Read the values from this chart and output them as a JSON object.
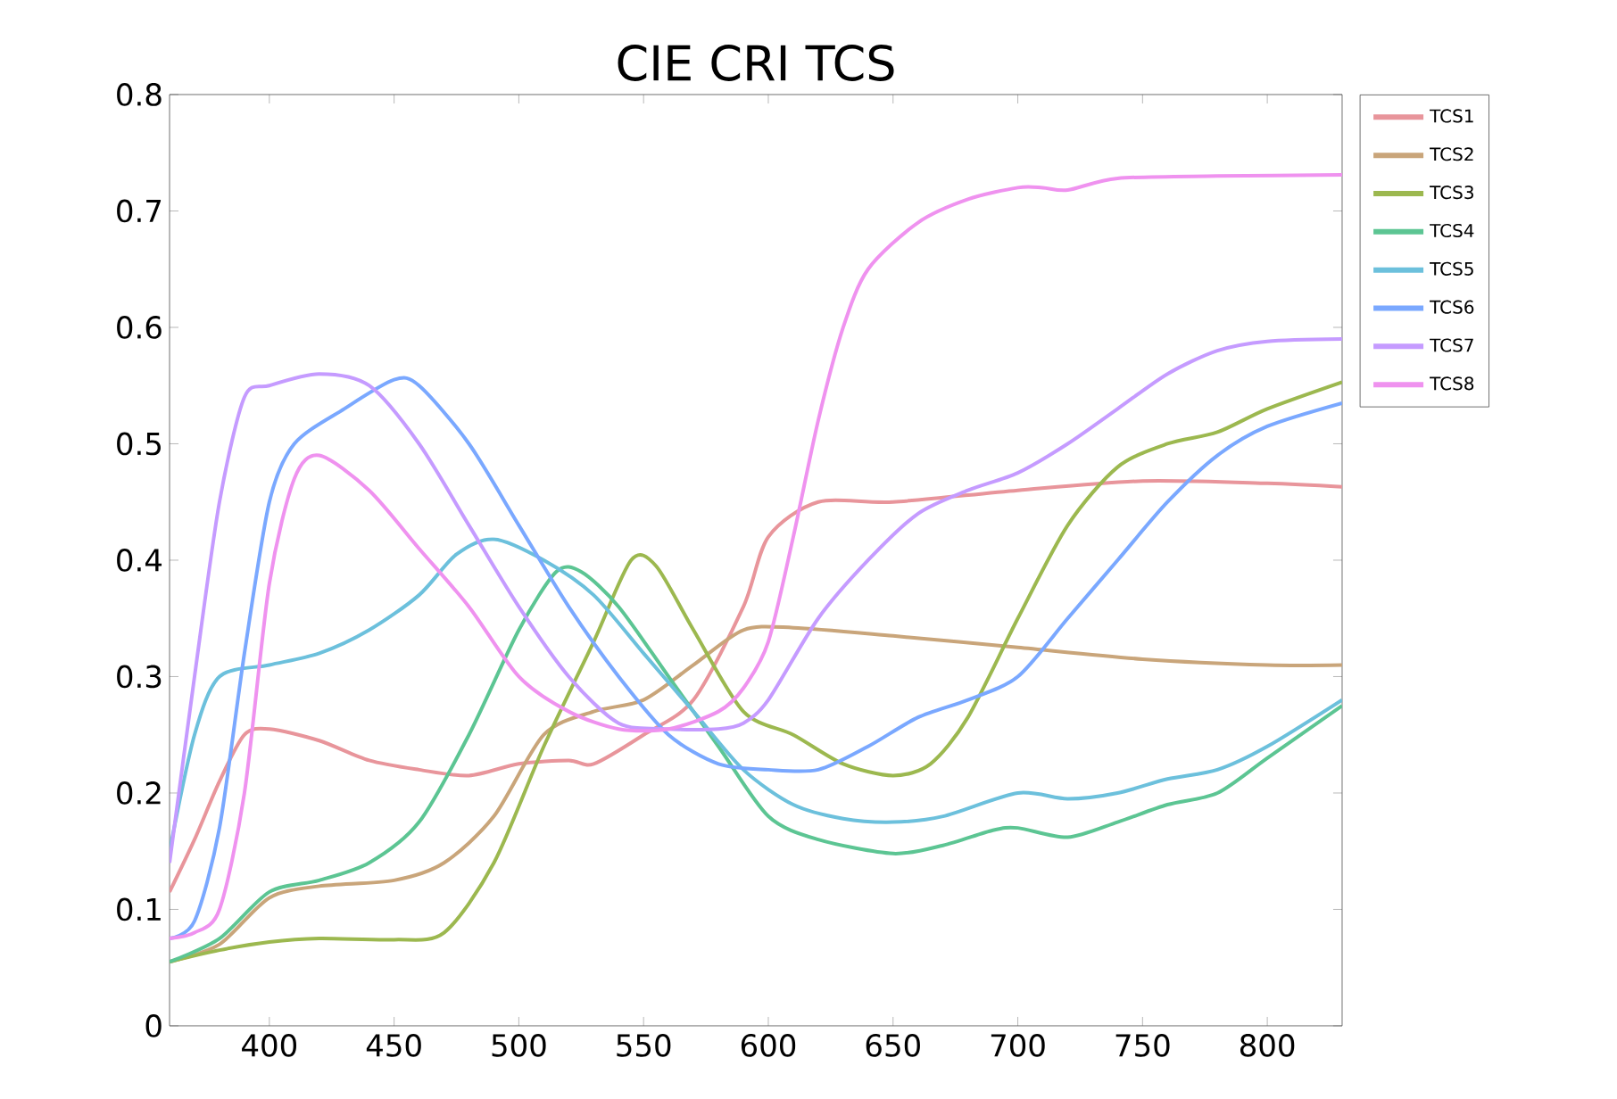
{
  "chart_data": {
    "type": "line",
    "title": "CIE CRI TCS",
    "xlim": [
      360,
      830
    ],
    "ylim": [
      0,
      0.8
    ],
    "xticks": [
      400,
      450,
      500,
      550,
      600,
      650,
      700,
      750,
      800
    ],
    "yticks": [
      0,
      0.1,
      0.2,
      0.3,
      0.4,
      0.5,
      0.6,
      0.7,
      0.8
    ],
    "legend": "top right",
    "grid": false,
    "series": [
      {
        "name": "TCS1",
        "color": "#e8959b",
        "x": [
          360,
          370,
          380,
          390,
          400,
          420,
          440,
          460,
          480,
          500,
          520,
          530,
          550,
          570,
          590,
          600,
          620,
          650,
          700,
          750,
          800,
          830
        ],
        "values": [
          0.115,
          0.16,
          0.21,
          0.25,
          0.255,
          0.245,
          0.228,
          0.22,
          0.215,
          0.225,
          0.228,
          0.225,
          0.25,
          0.28,
          0.36,
          0.42,
          0.45,
          0.45,
          0.46,
          0.468,
          0.466,
          0.463
        ]
      },
      {
        "name": "TCS2",
        "color": "#c9a57a",
        "x": [
          360,
          380,
          400,
          420,
          450,
          470,
          490,
          510,
          530,
          550,
          570,
          590,
          610,
          650,
          700,
          750,
          800,
          830
        ],
        "values": [
          0.055,
          0.07,
          0.11,
          0.12,
          0.125,
          0.14,
          0.18,
          0.25,
          0.27,
          0.28,
          0.31,
          0.34,
          0.342,
          0.335,
          0.325,
          0.315,
          0.31,
          0.31
        ]
      },
      {
        "name": "TCS3",
        "color": "#9cb84f",
        "x": [
          360,
          380,
          400,
          420,
          450,
          470,
          490,
          510,
          530,
          545,
          555,
          570,
          590,
          610,
          630,
          650,
          665,
          680,
          700,
          720,
          740,
          760,
          780,
          800,
          830
        ],
        "values": [
          0.055,
          0.065,
          0.072,
          0.075,
          0.074,
          0.08,
          0.14,
          0.24,
          0.33,
          0.4,
          0.395,
          0.34,
          0.27,
          0.25,
          0.225,
          0.215,
          0.225,
          0.265,
          0.35,
          0.43,
          0.48,
          0.5,
          0.51,
          0.53,
          0.553
        ]
      },
      {
        "name": "TCS4",
        "color": "#5cc593",
        "x": [
          360,
          380,
          400,
          420,
          440,
          460,
          480,
          500,
          515,
          525,
          540,
          560,
          580,
          600,
          620,
          650,
          670,
          690,
          700,
          720,
          740,
          760,
          780,
          800,
          830
        ],
        "values": [
          0.055,
          0.075,
          0.115,
          0.125,
          0.14,
          0.175,
          0.25,
          0.34,
          0.39,
          0.39,
          0.36,
          0.3,
          0.24,
          0.18,
          0.16,
          0.148,
          0.155,
          0.168,
          0.17,
          0.162,
          0.175,
          0.19,
          0.2,
          0.23,
          0.275
        ]
      },
      {
        "name": "TCS5",
        "color": "#6cc0dc",
        "x": [
          360,
          370,
          380,
          400,
          420,
          440,
          460,
          475,
          490,
          510,
          530,
          550,
          570,
          590,
          610,
          630,
          650,
          670,
          700,
          720,
          740,
          760,
          780,
          800,
          830
        ],
        "values": [
          0.15,
          0.25,
          0.3,
          0.31,
          0.32,
          0.34,
          0.37,
          0.405,
          0.418,
          0.4,
          0.37,
          0.32,
          0.27,
          0.22,
          0.19,
          0.178,
          0.175,
          0.18,
          0.2,
          0.195,
          0.2,
          0.212,
          0.22,
          0.24,
          0.28
        ]
      },
      {
        "name": "TCS6",
        "color": "#7aa8ff",
        "x": [
          360,
          370,
          380,
          390,
          400,
          410,
          430,
          450,
          460,
          480,
          500,
          520,
          540,
          560,
          580,
          600,
          620,
          640,
          660,
          680,
          700,
          720,
          740,
          760,
          780,
          800,
          830
        ],
        "values": [
          0.075,
          0.09,
          0.17,
          0.32,
          0.45,
          0.5,
          0.53,
          0.555,
          0.55,
          0.5,
          0.43,
          0.36,
          0.3,
          0.25,
          0.225,
          0.22,
          0.22,
          0.24,
          0.265,
          0.28,
          0.3,
          0.35,
          0.4,
          0.45,
          0.49,
          0.515,
          0.535
        ]
      },
      {
        "name": "TCS7",
        "color": "#c59bff",
        "x": [
          360,
          370,
          380,
          390,
          400,
          420,
          440,
          460,
          480,
          500,
          520,
          540,
          560,
          580,
          590,
          600,
          620,
          640,
          660,
          680,
          700,
          720,
          740,
          760,
          780,
          800,
          830
        ],
        "values": [
          0.14,
          0.3,
          0.45,
          0.54,
          0.55,
          0.56,
          0.55,
          0.5,
          0.43,
          0.36,
          0.3,
          0.26,
          0.255,
          0.255,
          0.26,
          0.28,
          0.35,
          0.4,
          0.44,
          0.46,
          0.475,
          0.5,
          0.53,
          0.56,
          0.58,
          0.588,
          0.59
        ]
      },
      {
        "name": "TCS8",
        "color": "#ef92ef",
        "x": [
          360,
          370,
          380,
          390,
          400,
          410,
          420,
          440,
          460,
          480,
          500,
          520,
          540,
          560,
          580,
          590,
          600,
          610,
          620,
          630,
          640,
          660,
          680,
          700,
          710,
          720,
          740,
          780,
          830
        ],
        "values": [
          0.075,
          0.08,
          0.1,
          0.2,
          0.38,
          0.47,
          0.49,
          0.46,
          0.41,
          0.36,
          0.3,
          0.27,
          0.255,
          0.255,
          0.27,
          0.29,
          0.33,
          0.42,
          0.52,
          0.6,
          0.65,
          0.69,
          0.71,
          0.72,
          0.72,
          0.718,
          0.728,
          0.73,
          0.731
        ]
      }
    ]
  }
}
